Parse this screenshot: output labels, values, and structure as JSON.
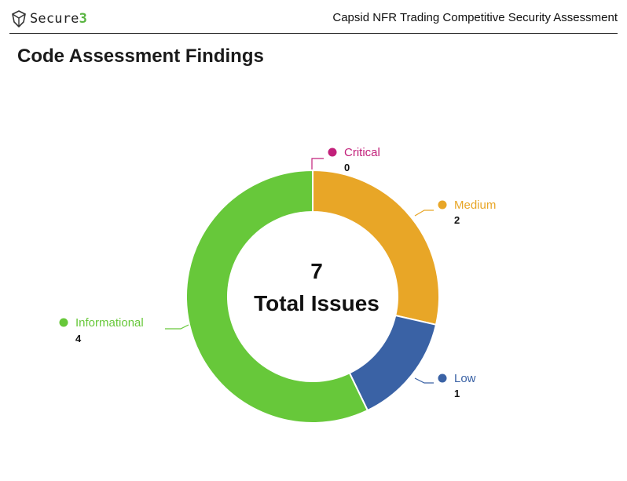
{
  "header": {
    "logo_text": "Secure",
    "logo_num": "3",
    "doc_title": "Capsid NFR Trading Competitive Security Assessment"
  },
  "section": {
    "title": "Code Assessment Findings"
  },
  "chart_data": {
    "type": "donut",
    "center": {
      "value": "7",
      "label": "Total Issues"
    },
    "slices": [
      {
        "name": "Critical",
        "value": 0,
        "color": "#c2207a"
      },
      {
        "name": "Medium",
        "value": 2,
        "color": "#e8a627"
      },
      {
        "name": "Low",
        "value": 1,
        "color": "#3a62a5"
      },
      {
        "name": "Informational",
        "value": 4,
        "color": "#67c83a"
      }
    ]
  }
}
